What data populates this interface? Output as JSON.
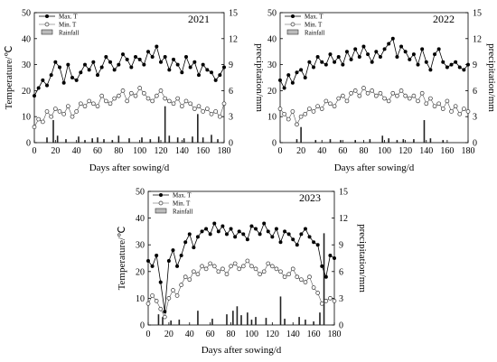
{
  "chart_data": [
    {
      "type": "line",
      "panel_label": "2021",
      "xlabel": "Days after sowing/d",
      "ylabel_left": "Temperature/℃",
      "ylabel_right": "precipitation/mm",
      "xlim": [
        0,
        180
      ],
      "ylim_left": [
        0,
        50
      ],
      "ylim_right": [
        0,
        15
      ],
      "xticks": [
        "0",
        "20",
        "40",
        "60",
        "80",
        "100",
        "120",
        "140",
        "160",
        "180"
      ],
      "yticks_left": [
        "0",
        "10",
        "20",
        "30",
        "40",
        "50"
      ],
      "yticks_right": [
        "0",
        "3",
        "6",
        "9",
        "12",
        "15"
      ],
      "legend": [
        "Max. T",
        "Min. T",
        "Rainfall"
      ],
      "legend_position": "top-left",
      "series": [
        {
          "name": "Max. T",
          "x": [
            0,
            4,
            8,
            12,
            16,
            20,
            24,
            28,
            32,
            36,
            40,
            44,
            48,
            52,
            56,
            60,
            64,
            68,
            72,
            76,
            80,
            84,
            88,
            92,
            96,
            100,
            104,
            108,
            112,
            116,
            120,
            124,
            128,
            132,
            136,
            140,
            144,
            148,
            152,
            156,
            160,
            164,
            168,
            172,
            176,
            180
          ],
          "y": [
            18,
            21,
            24,
            22,
            26,
            31,
            29,
            23,
            30,
            25,
            24,
            27,
            30,
            28,
            31,
            26,
            29,
            33,
            31,
            28,
            30,
            34,
            32,
            29,
            33,
            32,
            30,
            35,
            33,
            37,
            31,
            33,
            28,
            32,
            30,
            27,
            33,
            29,
            31,
            26,
            30,
            28,
            27,
            24,
            26,
            29
          ]
        },
        {
          "name": "Min. T",
          "x": [
            0,
            4,
            8,
            12,
            16,
            20,
            24,
            28,
            32,
            36,
            40,
            44,
            48,
            52,
            56,
            60,
            64,
            68,
            72,
            76,
            80,
            84,
            88,
            92,
            96,
            100,
            104,
            108,
            112,
            116,
            120,
            124,
            128,
            132,
            136,
            140,
            144,
            148,
            152,
            156,
            160,
            164,
            168,
            172,
            176,
            180
          ],
          "y": [
            6,
            9,
            8,
            12,
            10,
            13,
            12,
            11,
            14,
            10,
            12,
            15,
            14,
            16,
            15,
            14,
            18,
            16,
            15,
            17,
            18,
            20,
            16,
            19,
            18,
            21,
            19,
            17,
            16,
            18,
            20,
            17,
            16,
            15,
            17,
            14,
            16,
            15,
            13,
            14,
            12,
            13,
            11,
            12,
            10,
            15
          ]
        },
        {
          "name": "Rainfall",
          "x": [
            12,
            18,
            22,
            30,
            42,
            48,
            55,
            60,
            66,
            74,
            80,
            90,
            102,
            110,
            118,
            124,
            128,
            136,
            142,
            150,
            155,
            160,
            168,
            174
          ],
          "y": [
            0.6,
            2.6,
            0.8,
            0.4,
            0.7,
            0.3,
            0.5,
            0.6,
            0.4,
            0.3,
            0.8,
            0.5,
            0.6,
            0.4,
            0.7,
            4.2,
            0.8,
            0.6,
            0.5,
            0.7,
            3.3,
            0.6,
            0.9,
            0.4
          ]
        }
      ]
    },
    {
      "type": "line",
      "panel_label": "2022",
      "xlabel": "Days after sowing/d",
      "ylabel_left": "",
      "ylabel_right": "precipitation/mm",
      "xlim": [
        0,
        180
      ],
      "ylim_left": [
        0,
        50
      ],
      "ylim_right": [
        0,
        15
      ],
      "xticks": [
        "0",
        "20",
        "40",
        "60",
        "80",
        "100",
        "120",
        "140",
        "160",
        "180"
      ],
      "yticks_left": [
        "0",
        "10",
        "20",
        "30",
        "40",
        "50"
      ],
      "yticks_right": [
        "0",
        "3",
        "6",
        "9",
        "12",
        "15"
      ],
      "legend": [
        "Max. T",
        "Min. T",
        "Rainfall"
      ],
      "legend_position": "top-left",
      "series": [
        {
          "name": "Max. T",
          "x": [
            0,
            4,
            8,
            12,
            16,
            20,
            24,
            28,
            32,
            36,
            40,
            44,
            48,
            52,
            56,
            60,
            64,
            68,
            72,
            76,
            80,
            84,
            88,
            92,
            96,
            100,
            104,
            108,
            112,
            116,
            120,
            124,
            128,
            132,
            136,
            140,
            144,
            148,
            152,
            156,
            160,
            164,
            168,
            172,
            176,
            180
          ],
          "y": [
            24,
            21,
            26,
            23,
            27,
            28,
            25,
            31,
            29,
            33,
            31,
            30,
            34,
            31,
            33,
            30,
            35,
            32,
            36,
            33,
            37,
            34,
            31,
            35,
            33,
            36,
            38,
            40,
            33,
            37,
            35,
            32,
            34,
            30,
            36,
            31,
            28,
            34,
            36,
            31,
            29,
            30,
            31,
            29,
            28,
            30
          ]
        },
        {
          "name": "Min. T",
          "x": [
            0,
            4,
            8,
            12,
            16,
            20,
            24,
            28,
            32,
            36,
            40,
            44,
            48,
            52,
            56,
            60,
            64,
            68,
            72,
            76,
            80,
            84,
            88,
            92,
            96,
            100,
            104,
            108,
            112,
            116,
            120,
            124,
            128,
            132,
            136,
            140,
            144,
            148,
            152,
            156,
            160,
            164,
            168,
            172,
            176,
            180
          ],
          "y": [
            13,
            11,
            9,
            12,
            7,
            10,
            11,
            13,
            12,
            14,
            13,
            16,
            15,
            14,
            17,
            18,
            16,
            19,
            20,
            18,
            21,
            19,
            20,
            18,
            19,
            17,
            16,
            19,
            18,
            20,
            18,
            17,
            18,
            16,
            19,
            15,
            17,
            14,
            15,
            13,
            16,
            12,
            14,
            11,
            13,
            12
          ]
        },
        {
          "name": "Rainfall",
          "x": [
            16,
            20,
            34,
            48,
            58,
            72,
            86,
            98,
            104,
            112,
            118,
            128,
            138,
            144,
            156
          ],
          "y": [
            0.4,
            1.8,
            0.3,
            0.4,
            0.3,
            0.3,
            0.4,
            0.8,
            0.5,
            0.3,
            0.4,
            0.4,
            2.6,
            0.5,
            0.3
          ]
        }
      ]
    },
    {
      "type": "line",
      "panel_label": "2023",
      "xlabel": "Days after sowing/d",
      "ylabel_left": "Temperature/℃",
      "ylabel_right": "precipitation/mm",
      "xlim": [
        0,
        180
      ],
      "ylim_left": [
        0,
        50
      ],
      "ylim_right": [
        0,
        15
      ],
      "xticks": [
        "0",
        "20",
        "40",
        "60",
        "80",
        "100",
        "120",
        "140",
        "160",
        "180"
      ],
      "yticks_left": [
        "0",
        "10",
        "20",
        "30",
        "40",
        "50"
      ],
      "yticks_right": [
        "0",
        "3",
        "6",
        "9",
        "12",
        "15"
      ],
      "legend": [
        "Max. T",
        "Min. T",
        "Rainfall"
      ],
      "legend_position": "top-left",
      "series": [
        {
          "name": "Max. T",
          "x": [
            0,
            4,
            8,
            12,
            16,
            20,
            24,
            28,
            32,
            36,
            40,
            44,
            48,
            52,
            56,
            60,
            64,
            68,
            72,
            76,
            80,
            84,
            88,
            92,
            96,
            100,
            104,
            108,
            112,
            116,
            120,
            124,
            128,
            132,
            136,
            140,
            144,
            148,
            152,
            156,
            160,
            164,
            168,
            172,
            176,
            180
          ],
          "y": [
            24,
            22,
            26,
            16,
            5,
            24,
            28,
            22,
            26,
            31,
            34,
            29,
            33,
            35,
            36,
            34,
            38,
            35,
            37,
            34,
            36,
            33,
            35,
            34,
            32,
            37,
            36,
            34,
            38,
            35,
            33,
            36,
            31,
            35,
            34,
            32,
            30,
            34,
            36,
            33,
            31,
            30,
            22,
            18,
            26,
            25
          ]
        },
        {
          "name": "Min. T",
          "x": [
            0,
            4,
            8,
            12,
            16,
            20,
            24,
            28,
            32,
            36,
            40,
            44,
            48,
            52,
            56,
            60,
            64,
            68,
            72,
            76,
            80,
            84,
            88,
            92,
            96,
            100,
            104,
            108,
            112,
            116,
            120,
            124,
            128,
            132,
            136,
            140,
            144,
            148,
            152,
            156,
            160,
            164,
            168,
            172,
            176,
            180
          ],
          "y": [
            8,
            11,
            9,
            6,
            3,
            10,
            13,
            11,
            15,
            18,
            17,
            20,
            19,
            22,
            21,
            23,
            22,
            20,
            21,
            19,
            22,
            23,
            21,
            22,
            24,
            22,
            21,
            19,
            20,
            23,
            22,
            21,
            20,
            18,
            19,
            21,
            18,
            17,
            16,
            18,
            14,
            12,
            8,
            9,
            10,
            9
          ]
        },
        {
          "name": "Rainfall",
          "x": [
            10,
            14,
            22,
            30,
            48,
            62,
            76,
            82,
            86,
            90,
            96,
            100,
            104,
            114,
            128,
            132,
            146,
            152,
            160,
            166,
            170
          ],
          "y": [
            1.2,
            0.9,
            0.5,
            0.6,
            1.6,
            0.7,
            1.2,
            1.6,
            2.1,
            1.1,
            1.4,
            0.6,
            0.9,
            0.8,
            3.2,
            0.7,
            0.9,
            0.6,
            0.4,
            1.4,
            10.3
          ]
        }
      ]
    }
  ]
}
